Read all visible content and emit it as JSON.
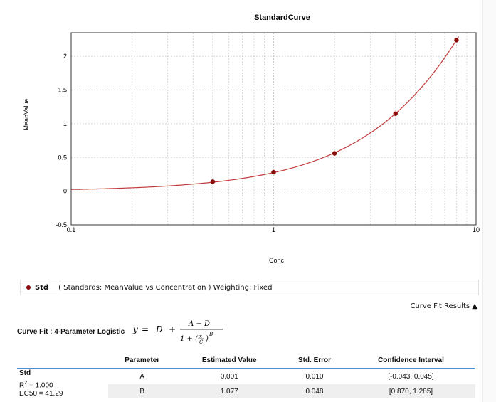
{
  "chart_data": {
    "type": "scatter",
    "title": "StandardCurve",
    "xlabel": "Conc",
    "ylabel": "MeanValue",
    "xscale": "log",
    "xlim": [
      0.1,
      10
    ],
    "ylim": [
      -0.5,
      2.35
    ],
    "x_ticks": [
      "0.1",
      "1",
      "10"
    ],
    "y_ticks": [
      "-0.5",
      "0",
      "0.5",
      "1",
      "1.5",
      "2"
    ],
    "grid": true,
    "series": [
      {
        "name": "Std",
        "color": "#8b0b0b",
        "x": [
          0.5,
          1,
          2,
          4,
          8
        ],
        "y": [
          0.14,
          0.28,
          0.56,
          1.15,
          2.24
        ]
      }
    ],
    "fit_curve": {
      "model": "4-Parameter Logistic",
      "A": 0.001,
      "B": 1.077,
      "EC50": 41.29,
      "color": "#c23b3b"
    }
  },
  "legend": {
    "name": "Std",
    "description": "( Standards: MeanValue vs Concentration )  Weighting: Fixed"
  },
  "fit_toggle": "Curve Fit Results ▲",
  "fit_label": "Curve Fit : 4-Parameter Logistic",
  "table": {
    "headers": [
      "Parameter",
      "Estimated Value",
      "Std. Error",
      "Confidence Interval"
    ],
    "group": {
      "name": "Std",
      "r2": "= 1.000",
      "ec50": "EC50 = 41.29"
    },
    "rows": [
      [
        "A",
        "0.001",
        "0.010",
        "[-0.043, 0.045]"
      ],
      [
        "B",
        "1.077",
        "0.048",
        "[0.870, 1.285]"
      ]
    ]
  }
}
